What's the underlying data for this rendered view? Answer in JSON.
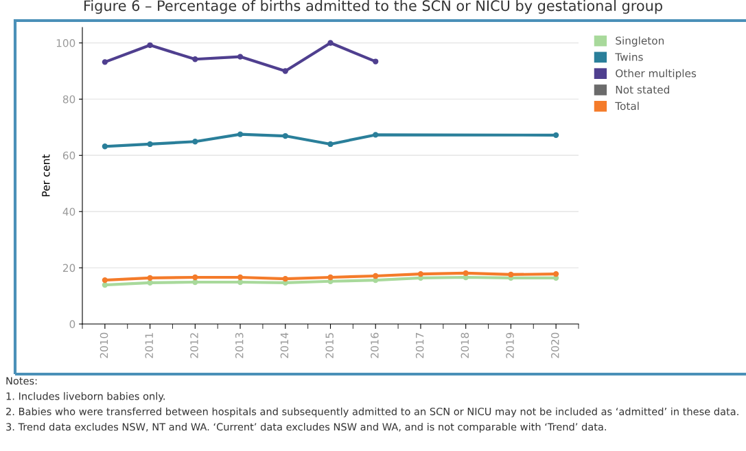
{
  "chart_data": {
    "type": "line",
    "title": "Figure 6 – Percentage of births admitted to the SCN or NICU by gestational group",
    "ylabel": "Per cent",
    "categories": [
      "2010",
      "2011",
      "2012",
      "2013",
      "2014",
      "2015",
      "2016",
      "2017",
      "2018",
      "2019",
      "2020"
    ],
    "series": [
      {
        "name": "Singleton",
        "color": "#a8d99b",
        "values": [
          13.9,
          14.7,
          14.9,
          14.9,
          14.7,
          15.2,
          15.6,
          16.4,
          16.6,
          16.4,
          16.4
        ]
      },
      {
        "name": "Twins",
        "color": "#2a7f9a",
        "values": [
          63.2,
          64.0,
          64.9,
          67.5,
          66.9,
          64.0,
          67.3,
          null,
          null,
          null,
          67.2
        ]
      },
      {
        "name": "Other multiples",
        "color": "#4f3f8f",
        "values": [
          93.2,
          99.2,
          94.2,
          95.1,
          90.0,
          100,
          93.4,
          null,
          null,
          null,
          null
        ]
      },
      {
        "name": "Not stated",
        "color": "#6b6b6b",
        "values": [
          null,
          null,
          null,
          null,
          null,
          null,
          null,
          null,
          null,
          null,
          null
        ]
      },
      {
        "name": "Total",
        "color": "#f47b2a",
        "values": [
          15.6,
          16.4,
          16.6,
          16.6,
          16.1,
          16.6,
          17.1,
          17.8,
          18.1,
          17.6,
          17.8
        ]
      }
    ],
    "ylim": [
      0,
      105.5
    ],
    "yticks": [
      0,
      20,
      40,
      60,
      80,
      100
    ],
    "grid": "y",
    "legend": "top right",
    "marker": "circle",
    "line_style": "solid",
    "annotations": [
      "Notes:",
      "1. Includes liveborn babies only.",
      "2. Babies who were transferred between hospitals and subsequently admitted to an SCN or NICU may not be included as ‘admitted’ in these data.",
      "3. Trend data excludes NSW, NT and WA. ‘Current’ data excludes NSW and WA, and is not comparable with ‘Trend’ data."
    ]
  }
}
